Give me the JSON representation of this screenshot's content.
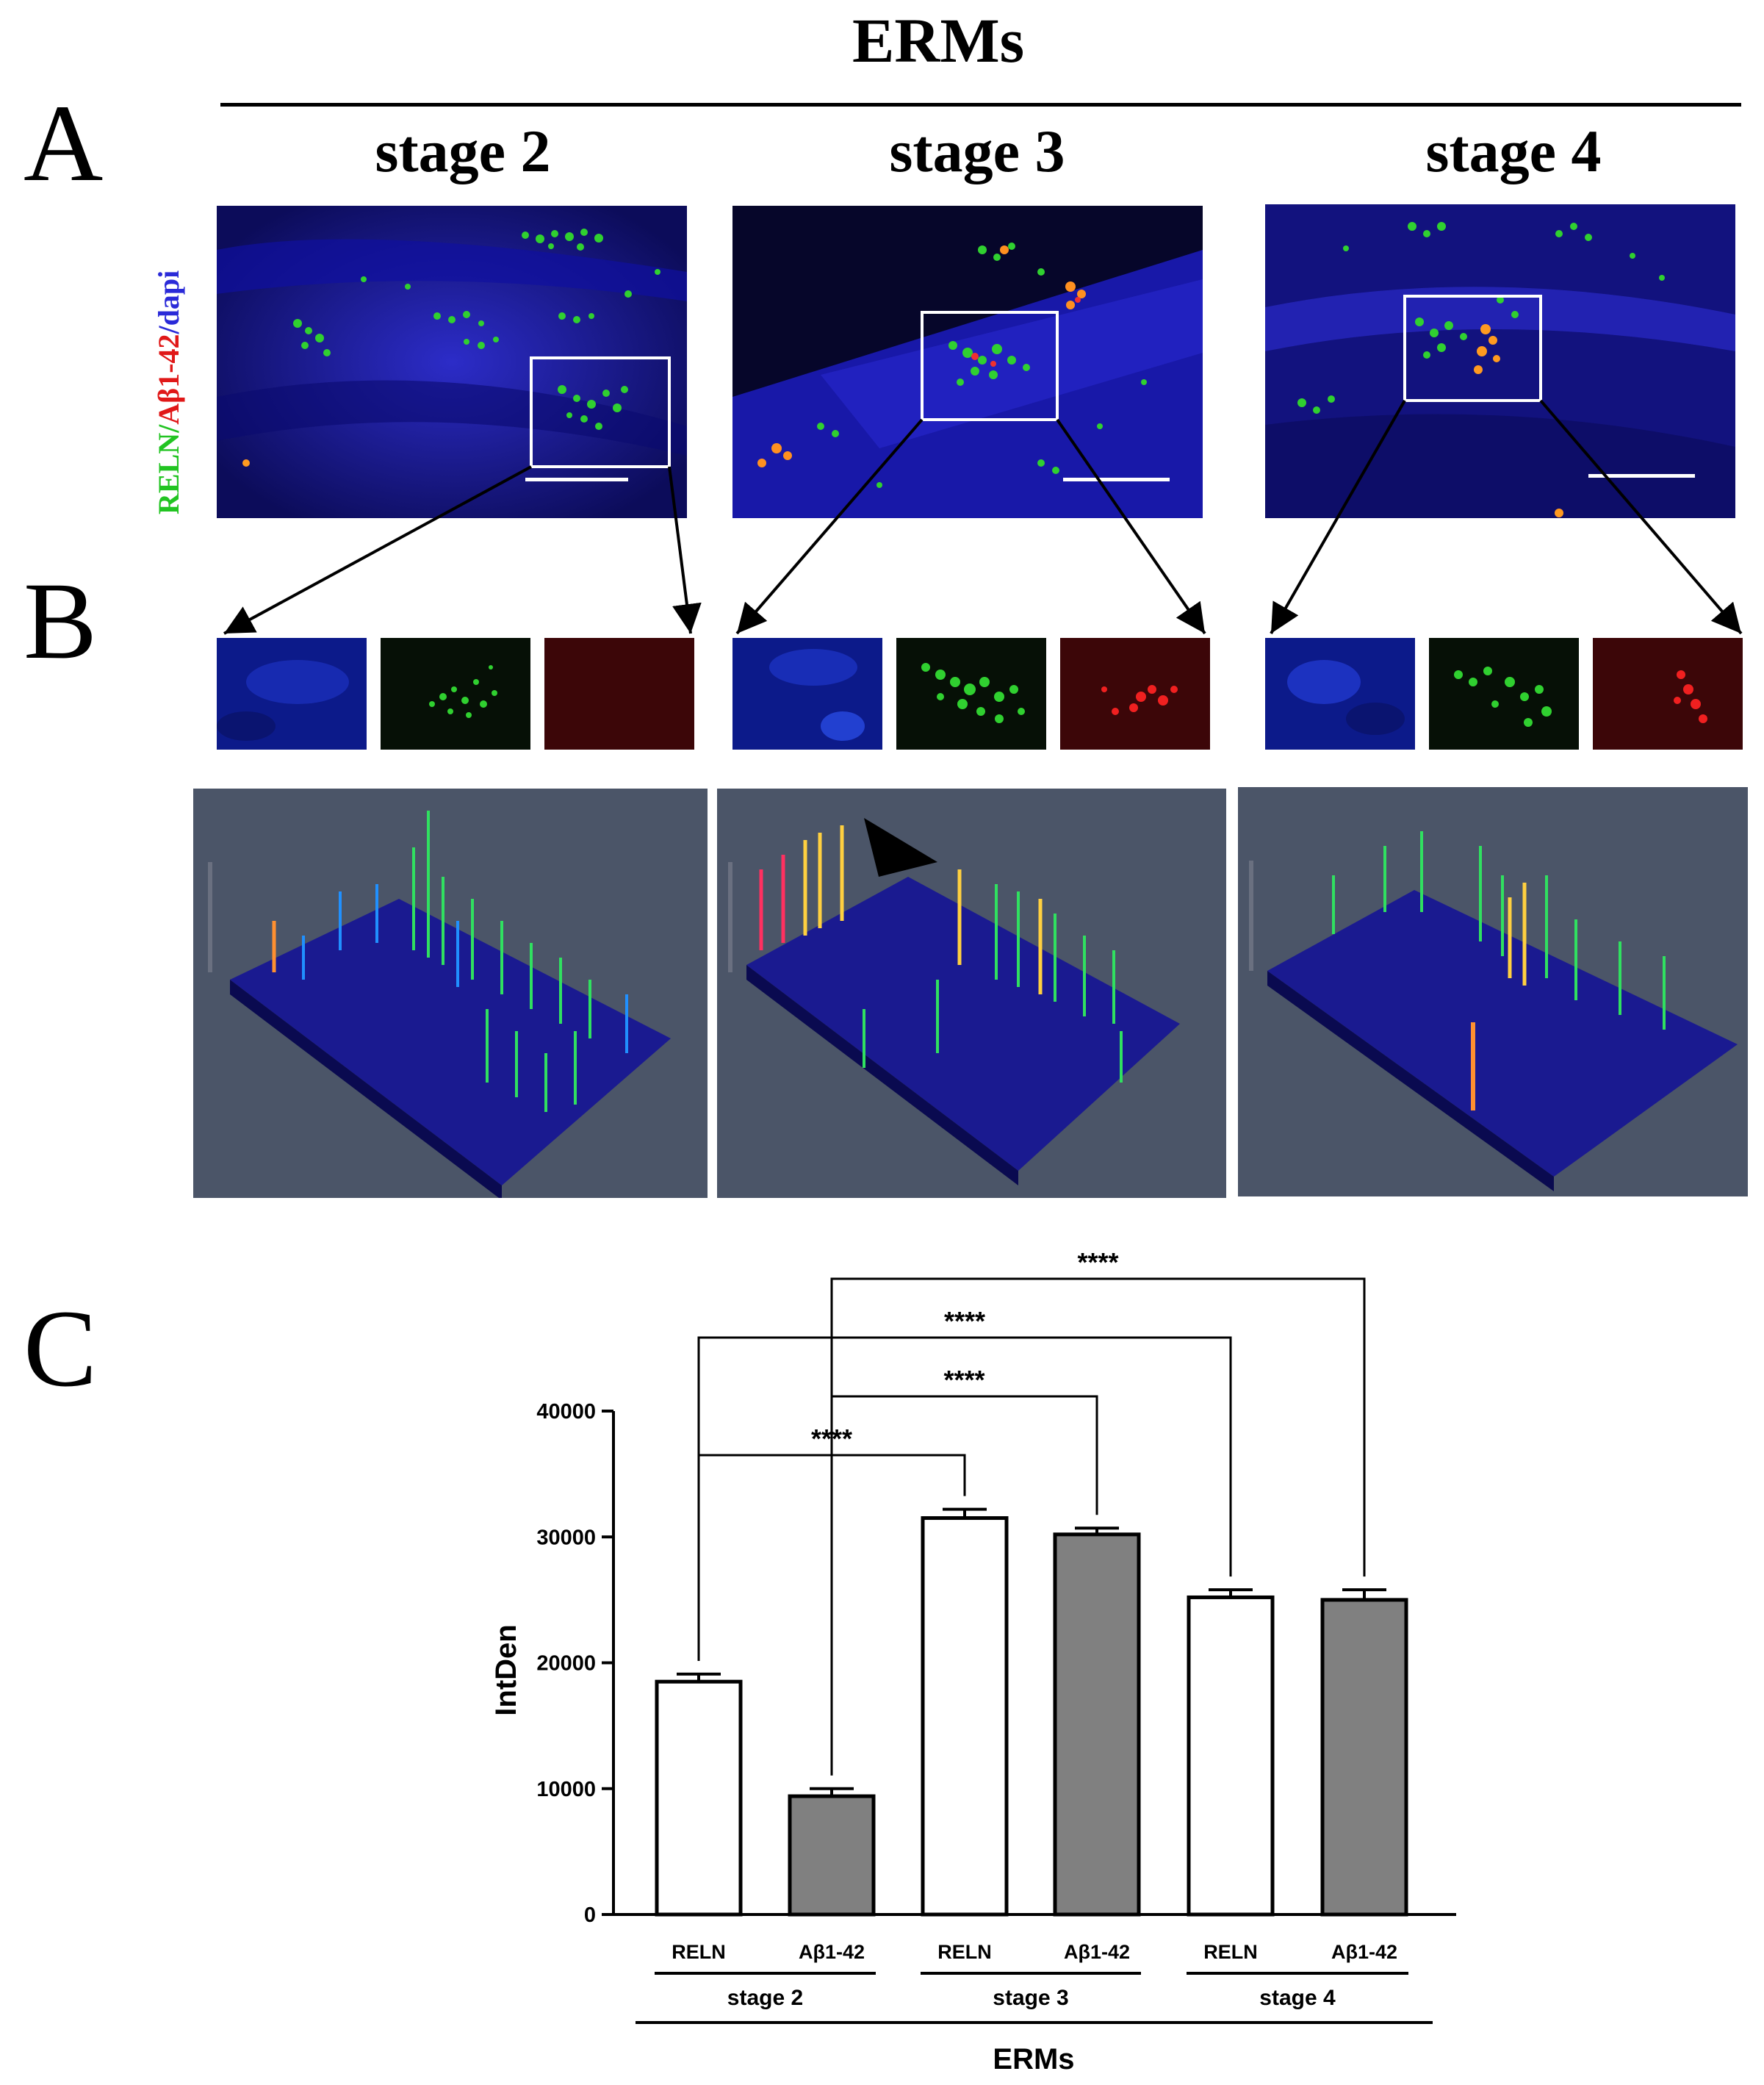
{
  "figure": {
    "top_title": "ERMs",
    "panel_labels": {
      "a": "A",
      "b": "B",
      "c": "C"
    },
    "stages": [
      "stage 2",
      "stage 3",
      "stage 4"
    ],
    "stain_label": {
      "part1": "RELN",
      "sep1": "/",
      "part2": "Aβ1-42",
      "sep2": "/",
      "part3": "dapi"
    },
    "colors": {
      "reln": "#22c422",
      "abeta": "#e01818",
      "dapi": "#2a2ad8",
      "bar_reln": "#ffffff",
      "bar_abeta": "#808080",
      "surface_bg": "#4b5568"
    }
  },
  "chart_data": {
    "type": "bar",
    "ylabel": "IntDen",
    "xlabel": "ERMs",
    "ylim": [
      0,
      40000
    ],
    "yticks": [
      "0",
      "10000",
      "20000",
      "30000",
      "40000"
    ],
    "groups": [
      "stage 2",
      "stage 3",
      "stage 4"
    ],
    "categories": [
      "RELN",
      "Aβ1-42",
      "RELN",
      "Aβ1-42",
      "RELN",
      "Aβ1-42"
    ],
    "values": [
      18500,
      9400,
      31500,
      30200,
      25200,
      25000
    ],
    "errors": [
      600,
      600,
      700,
      500,
      600,
      800
    ],
    "significance": [
      {
        "from": 0,
        "to": 2,
        "label": "****"
      },
      {
        "from": 1,
        "to": 3,
        "label": "****"
      },
      {
        "from": 0,
        "to": 4,
        "label": "****"
      },
      {
        "from": 1,
        "to": 5,
        "label": "****"
      }
    ]
  }
}
